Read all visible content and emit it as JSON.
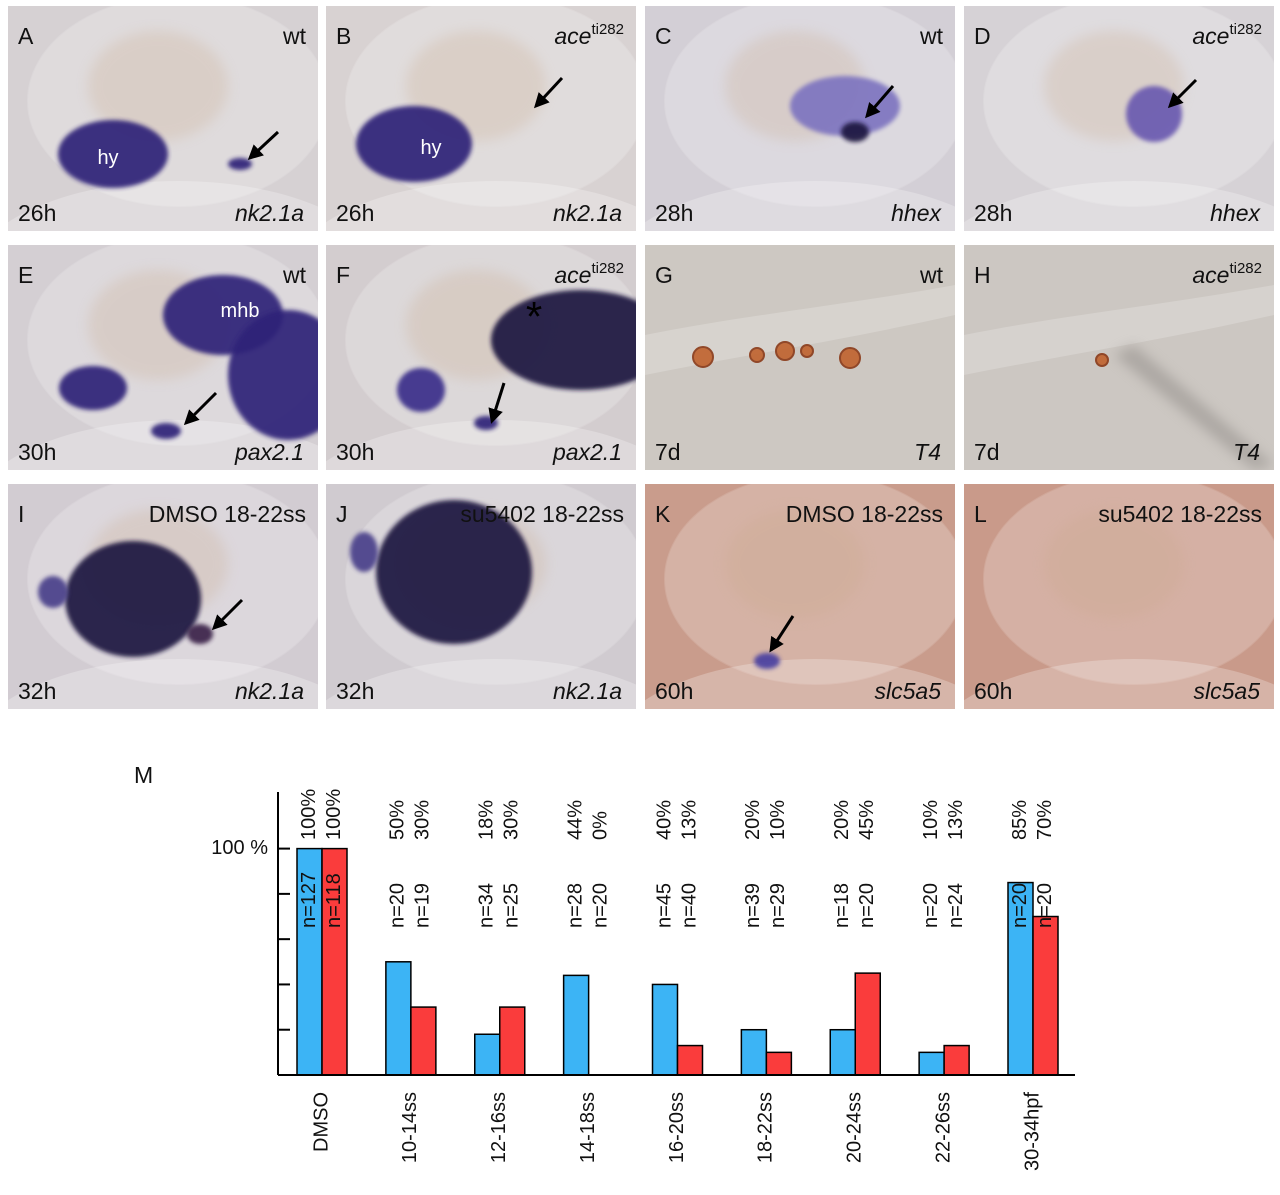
{
  "panels": [
    {
      "letter": "A",
      "label": "wt",
      "time": "26h",
      "gene": "nk2.1a",
      "annotations": [
        "hy"
      ]
    },
    {
      "letter": "B",
      "label": "ace",
      "superscript": "ti282",
      "time": "26h",
      "gene": "nk2.1a",
      "annotations": [
        "hy"
      ]
    },
    {
      "letter": "C",
      "label": "wt",
      "time": "28h",
      "gene": "hhex"
    },
    {
      "letter": "D",
      "label": "ace",
      "superscript": "ti282",
      "time": "28h",
      "gene": "hhex"
    },
    {
      "letter": "E",
      "label": "wt",
      "time": "30h",
      "gene": "pax2.1",
      "annotations": [
        "mhb"
      ]
    },
    {
      "letter": "F",
      "label": "ace",
      "superscript": "ti282",
      "time": "30h",
      "gene": "pax2.1",
      "annotations": [
        "*"
      ]
    },
    {
      "letter": "G",
      "label": "wt",
      "time": "7d",
      "gene": "T4"
    },
    {
      "letter": "H",
      "label": "ace",
      "superscript": "ti282",
      "time": "7d",
      "gene": "T4"
    },
    {
      "letter": "I",
      "label": "DMSO 18-22ss",
      "time": "32h",
      "gene": "nk2.1a"
    },
    {
      "letter": "J",
      "label": "su5402 18-22ss",
      "time": "32h",
      "gene": "nk2.1a"
    },
    {
      "letter": "K",
      "label": "DMSO 18-22ss",
      "time": "60h",
      "gene": "slc5a5"
    },
    {
      "letter": "L",
      "label": "su5402 18-22ss",
      "time": "60h",
      "gene": "slc5a5"
    }
  ],
  "chart_data": {
    "type": "bar",
    "panel_letter": "M",
    "categories": [
      "DMSO",
      "10-14ss",
      "12-16ss",
      "14-18ss",
      "16-20ss",
      "18-22ss",
      "20-24ss",
      "22-26ss",
      "30-34hpf"
    ],
    "series": [
      {
        "color": "#3cb4f5",
        "values": [
          100,
          50,
          18,
          44,
          40,
          20,
          20,
          10,
          85
        ],
        "value_labels": [
          "100%",
          "50%",
          "18%",
          "44%",
          "40%",
          "20%",
          "20%",
          "10%",
          "85%"
        ],
        "n_labels": [
          "n=127",
          "n=20",
          "n=34",
          "n=28",
          "n=45",
          "n=39",
          "n=18",
          "n=20",
          "n=20"
        ]
      },
      {
        "color": "#fa3c3c",
        "values": [
          100,
          30,
          30,
          0,
          13,
          10,
          45,
          13,
          70
        ],
        "value_labels": [
          "100%",
          "30%",
          "30%",
          "0%",
          "13%",
          "10%",
          "45%",
          "13%",
          "70%"
        ],
        "n_labels": [
          "n=118",
          "n=19",
          "n=25",
          "n=20",
          "n=40",
          "n=29",
          "n=20",
          "n=24",
          "n=20"
        ]
      }
    ],
    "ylim": [
      0,
      125
    ],
    "yticks": [
      {
        "value": 100,
        "label": "100 %"
      }
    ],
    "yminorticks": [
      0,
      20,
      40,
      60,
      80
    ]
  }
}
